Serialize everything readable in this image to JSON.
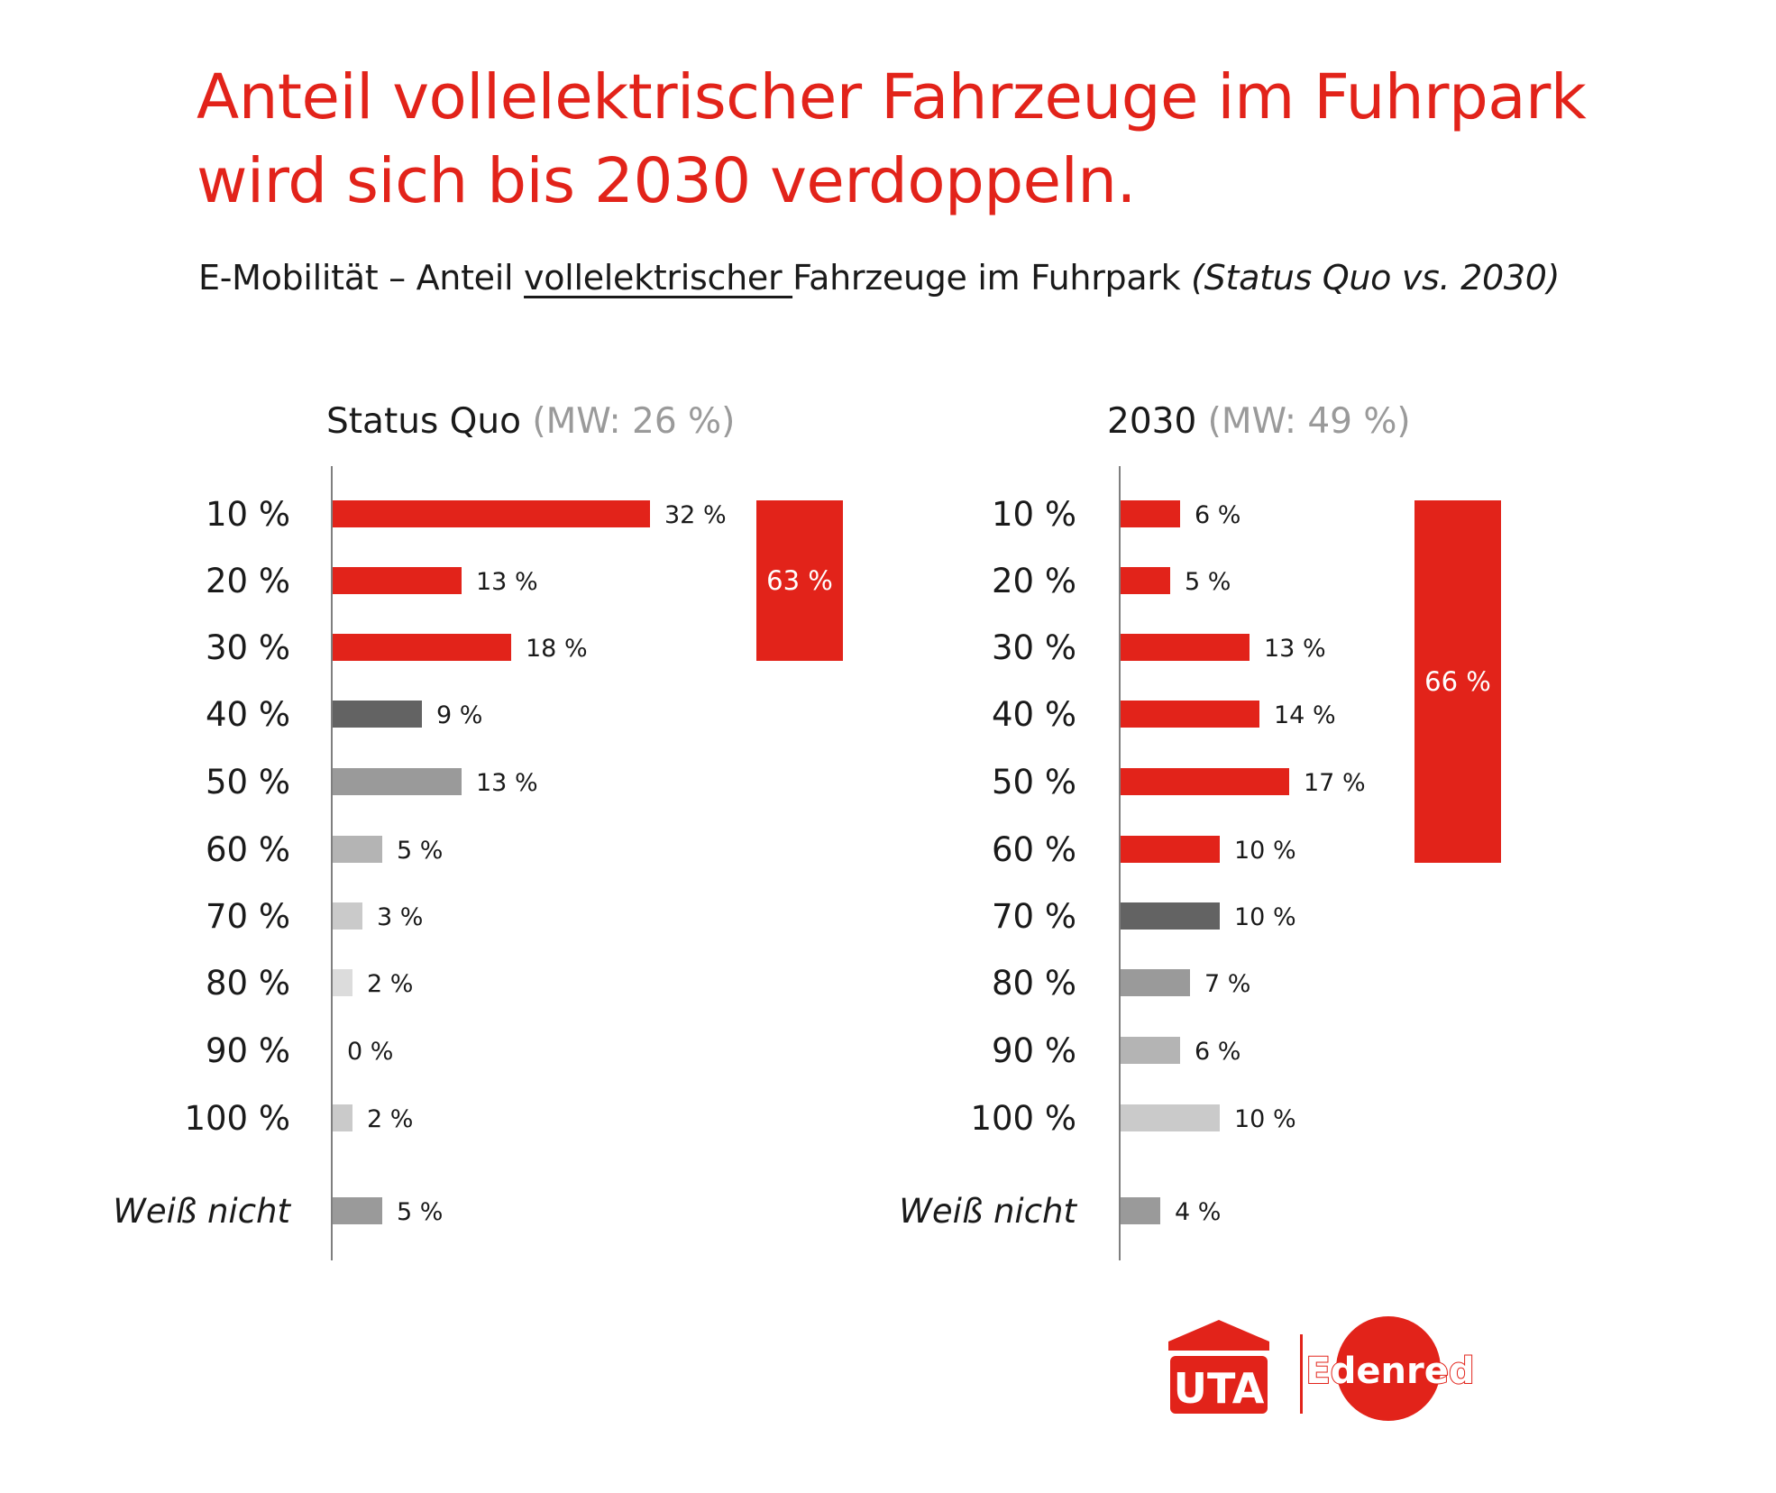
{
  "title_lines": [
    "Anteil vollelektrischer Fahrzeuge im Fuhrpark",
    "wird sich bis 2030 verdoppeln."
  ],
  "subtitle": {
    "prefix": "E-Mobilität – Anteil ",
    "underlined": "vollelektrischer ",
    "middle": "Fahrzeuge im Fuhrpark ",
    "italic": "(Status Quo vs. 2030)"
  },
  "logo": {
    "brand_left": "UTA",
    "brand_right": "Edenred",
    "color": "#e2231a"
  },
  "colors": {
    "red": "#e2231a",
    "dark_gray": "#636363",
    "mid_gray": "#9a9a9a",
    "light_gray": "#b4b4b4",
    "lighter_gray": "#cacaca",
    "lightest_gray": "#dcdcdc",
    "axis": "#555555"
  },
  "chart_data": [
    {
      "type": "bar",
      "orientation": "horizontal",
      "title": "Status Quo",
      "mean_label": "(MW: 26 %)",
      "categories": [
        "10 %",
        "20 %",
        "30 %",
        "40 %",
        "50 %",
        "60 %",
        "70 %",
        "80 %",
        "90 %",
        "100 %",
        "Weiß nicht"
      ],
      "values": [
        32,
        13,
        18,
        9,
        13,
        5,
        3,
        2,
        0,
        2,
        5
      ],
      "value_labels": [
        "32 %",
        "13 %",
        "18 %",
        "9 %",
        "13 %",
        "5 %",
        "3 %",
        "2 %",
        "0 %",
        "2 %",
        "5 %"
      ],
      "bar_colors": [
        "#e2231a",
        "#e2231a",
        "#e2231a",
        "#636363",
        "#9a9a9a",
        "#b4b4b4",
        "#cacaca",
        "#dcdcdc",
        "#dcdcdc",
        "#cacaca",
        "#9a9a9a"
      ],
      "group_total": {
        "label": "63 %",
        "value": 63,
        "from_category": "10 %",
        "to_category": "30 %",
        "color": "#e2231a"
      }
    },
    {
      "type": "bar",
      "orientation": "horizontal",
      "title": "2030",
      "mean_label": "(MW: 49 %)",
      "categories": [
        "10 %",
        "20 %",
        "30 %",
        "40 %",
        "50 %",
        "60 %",
        "70 %",
        "80 %",
        "90 %",
        "100 %",
        "Weiß nicht"
      ],
      "values": [
        6,
        5,
        13,
        14,
        17,
        10,
        10,
        7,
        6,
        10,
        4
      ],
      "value_labels": [
        "6 %",
        "5 %",
        "13 %",
        "14 %",
        "17 %",
        "10 %",
        "10 %",
        "7 %",
        "6 %",
        "10 %",
        "4 %"
      ],
      "bar_colors": [
        "#e2231a",
        "#e2231a",
        "#e2231a",
        "#e2231a",
        "#e2231a",
        "#e2231a",
        "#636363",
        "#9a9a9a",
        "#b4b4b4",
        "#cacaca",
        "#9a9a9a"
      ],
      "group_total": {
        "label": "66 %",
        "value": 66,
        "from_category": "10 %",
        "to_category": "60 %",
        "color": "#e2231a"
      }
    }
  ]
}
